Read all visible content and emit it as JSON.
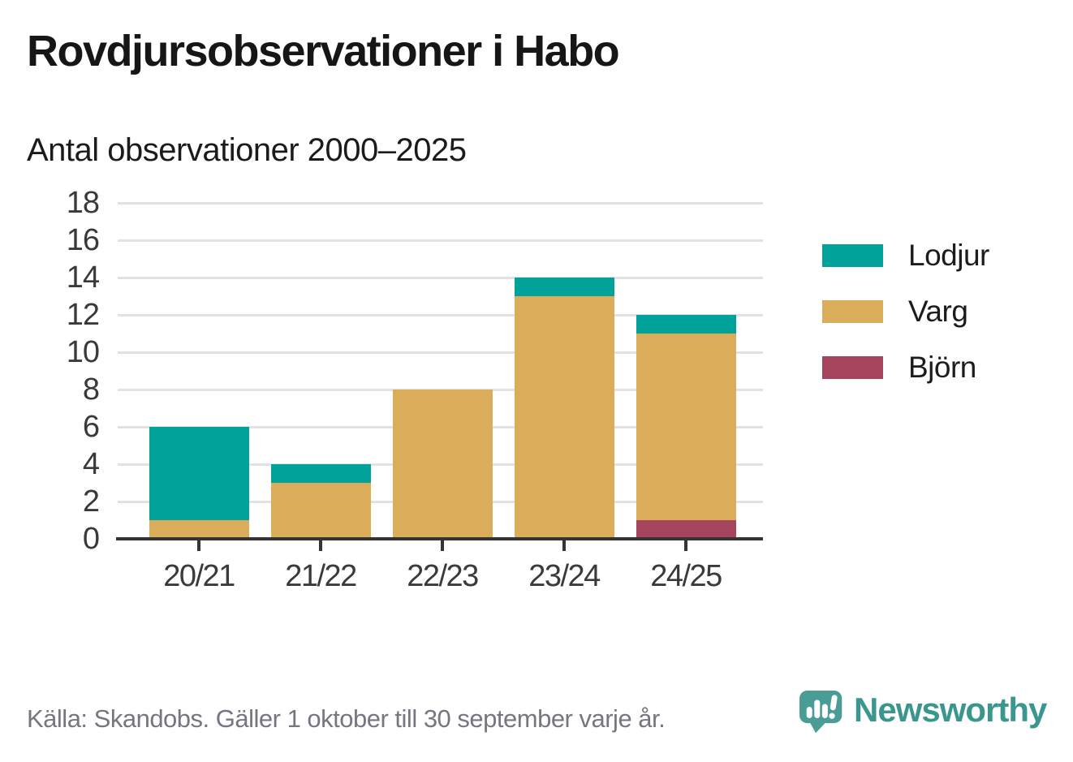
{
  "title": "Rovdjursobservationer i Habo",
  "subtitle": "Antal observationer 2000–2025",
  "footer": {
    "source": "Källa: Skandobs. Gäller 1 oktober till 30 september varje år.",
    "brand": "Newsworthy"
  },
  "colors": {
    "lodjur_teal": "#00A29A",
    "varg_gold": "#DBAD5A",
    "bjorn_maroon": "#A6435D",
    "gridline": "#E2E2E2",
    "axis": "#343434",
    "tick_text": "#3A3A3A",
    "title_text": "#161616",
    "muted_text": "#767680",
    "brand_teal": "#3A968F",
    "logo_bubble_teal": "#4A9D96"
  },
  "chart_data": {
    "type": "bar",
    "stacked": true,
    "title": "Rovdjursobservationer i Habo",
    "subtitle": "Antal observationer 2000–2025",
    "categories": [
      "20/21",
      "21/22",
      "22/23",
      "23/24",
      "24/25"
    ],
    "series": [
      {
        "name": "Lodjur",
        "color": "#00A29A",
        "values": [
          5,
          1,
          0,
          1,
          1
        ]
      },
      {
        "name": "Varg",
        "color": "#DBAD5A",
        "values": [
          1,
          3,
          8,
          13,
          10
        ]
      },
      {
        "name": "Björn",
        "color": "#A6435D",
        "values": [
          0,
          0,
          0,
          0,
          1
        ]
      }
    ],
    "stack_order_bottom_to_top": [
      "Björn",
      "Varg",
      "Lodjur"
    ],
    "stack_totals": [
      6,
      4,
      8,
      14,
      12
    ],
    "xlabel": "",
    "ylabel": "",
    "ylim": [
      0,
      18
    ],
    "y_ticks": [
      0,
      2,
      4,
      6,
      8,
      10,
      12,
      14,
      16,
      18
    ],
    "grid": true,
    "legend_position": "right",
    "legend_order": [
      "Lodjur",
      "Varg",
      "Björn"
    ]
  }
}
